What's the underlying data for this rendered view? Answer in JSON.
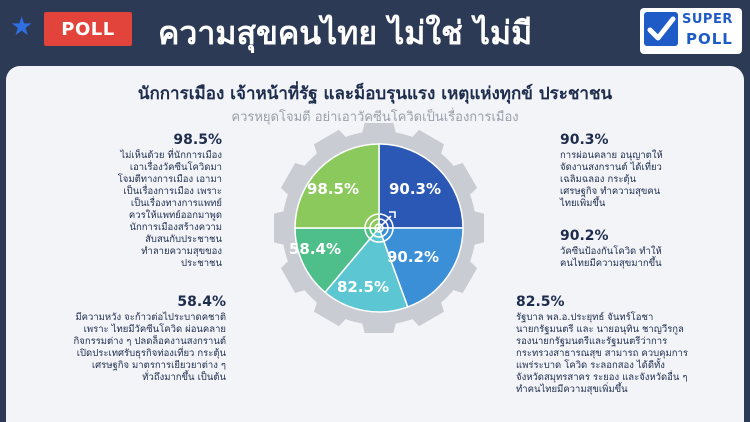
{
  "header": {
    "badge": "POLL",
    "headline": "ความสุขคนไทย ไม่ใช่ ไม่มี",
    "logo_top": "SUPER",
    "logo_bottom": "POLL"
  },
  "panel": {
    "subtitle": "นักการเมือง เจ้าหน้าที่รัฐ และม็อบรุนแรง เหตุแห่งทุกข์ ประชาชน",
    "subtitle2": "ควรหยุดโจมตี อย่าเอาวัคซีนโควิดเป็นเรื่องการเมือง"
  },
  "blocks": {
    "tl": {
      "pct": "98.5%",
      "text": "ไม่เห็นด้วย ที่นักการเมือง\nเอาเรื่องวัคซีนโควิดมา\nโจมตีทางการเมือง เอามา\nเป็นเรื่องการเมือง เพราะ\nเป็นเรื่องทางการแพทย์\nควรให้แพทย์ออกมาพูด\nนักการเมืองสร้างความ\nสับสนกับประชาชน\nทำลายความสุขของ\nประชาชน"
    },
    "bl": {
      "pct": "58.4%",
      "text": "มีความหวัง จะก้าวต่อไประบาดคชาติ\nเพราะ ไทยมีวัคซีนโควิด ผ่อนคลาย\nกิจกรรมต่าง ๆ ปลดล็อคงานสงกรานต์\nเปิดประเทศรับธุรกิจท่องเที่ยว กระตุ้น\nเศรษฐกิจ มาตรการเยียวยาต่าง ๆ\nทั่วถึงมากขึ้น เป็นต้น"
    },
    "tr": {
      "pct": "90.3%",
      "text": "การผ่อนคลาย อนุญาตให้\nจัดงานสงกรานต์ ได้เที่ยว\nเฉลิมฉลอง กระตุ้น\nเศรษฐกิจ ทำความสุขคน\nไทยเพิ่มขึ้น"
    },
    "mr": {
      "pct": "90.2%",
      "text": "วัคซีนป้องกันโควิด ทำให้\nคนไทยมีความสุขมากขึ้น"
    },
    "br": {
      "pct": "82.5%",
      "text": "รัฐบาล พล.อ.ประยุทธ์ จันทร์โอชา\nนายกรัฐมนตรี และ นายอนุทิน ชาญวีรกูล\nรองนายกรัฐมนตรีและรัฐมนตรีว่าการ\nกระทรวงสาธารณสุข สามารถ ควบคุมการ\nแพร่ระบาด โควิด ระลอกสอง ได้ดีทั้ง\nจังหวัดสมุทรสาคร ระยอง และจังหวัดอื่น ๆ\nทำคนไทยมีความสุขเพิ่มขึ้น"
    }
  },
  "chart_data": {
    "type": "pie",
    "title": "",
    "categories": [
      "90.3%",
      "90.2%",
      "82.5%",
      "58.4%",
      "98.5%"
    ],
    "values": [
      90.3,
      90.2,
      82.5,
      58.4,
      98.5
    ],
    "colors": [
      "#2b57b5",
      "#3a8fd6",
      "#5cc7d2",
      "#4ebf8a",
      "#8cc95c"
    ],
    "note_labels": [
      "90.3%",
      "90.2%",
      "82.5%",
      "58.4%",
      "98.5%"
    ],
    "gear_color": "#c9ccd2"
  }
}
